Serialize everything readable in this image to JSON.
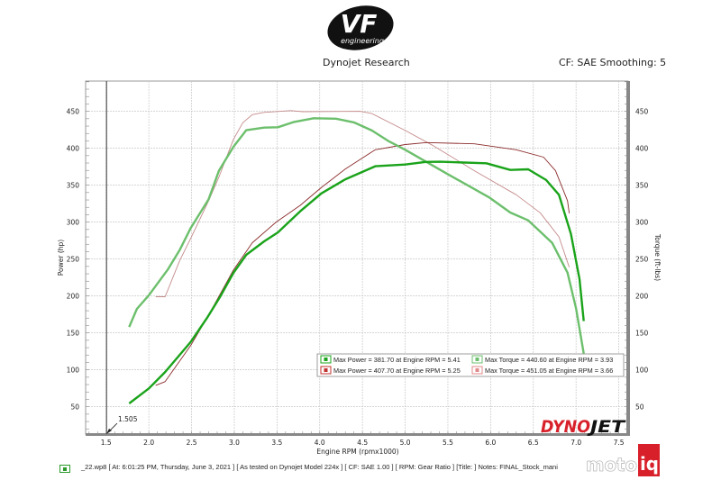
{
  "header": {
    "logo_text": "VF engineering",
    "left_title": "Dynojet Research",
    "right_title": "CF: SAE Smoothing: 5"
  },
  "footer": {
    "note": "_22.wp8 [ At: 6:01:25 PM, Thursday, June 3, 2021 ] [ As tested on Dynojet Model 224x ] [ CF: SAE 1.00 ] [ RPM: Gear Ratio ] [Title: ]  Notes: FINAL_Stock_mani",
    "dynojet_logo": "DYNOJET",
    "watermark": "motoiq"
  },
  "chart_data": {
    "type": "line",
    "xlabel": "Engine RPM (rpmx1000)",
    "ylabel": "Power (hp)",
    "y2label": "Torque (ft-lbs)",
    "xlim": [
      1.26,
      7.61
    ],
    "ylim": [
      13,
      491
    ],
    "xticks": [
      "1.5",
      "2.0",
      "2.5",
      "3.0",
      "3.5",
      "4.0",
      "4.5",
      "5.0",
      "5.5",
      "6.0",
      "6.5",
      "7.0",
      "7.5"
    ],
    "yticks": [
      "50",
      "100",
      "150",
      "200",
      "250",
      "300",
      "350",
      "400",
      "450"
    ],
    "grid": true,
    "cursor": {
      "x": 1.505,
      "label": "1.505"
    },
    "legend": {
      "placement": "bottom-right",
      "entries": [
        {
          "text": "Max Power = 381.70 at Engine RPM = 5.41",
          "color": "#1aa31a"
        },
        {
          "text": "Max Torque = 440.60 at Engine RPM = 3.93",
          "color": "#6cbf6c"
        },
        {
          "text": "Max Power = 407.70 at Engine RPM = 5.25",
          "color": "#c0302e"
        },
        {
          "text": "Max Torque = 451.05 at Engine RPM = 3.66",
          "color": "#e08a8a"
        }
      ]
    },
    "series": [
      {
        "id": "power-green",
        "color": "#1aa31a",
        "width": 2.4,
        "x": [
          1.77,
          2.0,
          2.19,
          2.49,
          2.68,
          2.84,
          2.99,
          3.14,
          3.35,
          3.51,
          3.77,
          4.02,
          4.3,
          4.65,
          5.0,
          5.24,
          5.41,
          5.6,
          5.95,
          6.23,
          6.44,
          6.65,
          6.8,
          6.94,
          7.04,
          7.09
        ],
        "y": [
          54.5,
          74.8,
          97,
          137.8,
          170,
          200,
          231.3,
          255.7,
          274,
          286,
          314.6,
          339,
          358,
          375.6,
          378,
          381.5,
          381.7,
          381,
          379.7,
          370.7,
          371.5,
          357,
          337,
          284,
          223,
          166
        ]
      },
      {
        "id": "torque-green",
        "color": "#6cbf6c",
        "width": 2.4,
        "x": [
          1.77,
          1.86,
          2.0,
          2.22,
          2.36,
          2.49,
          2.7,
          2.82,
          2.99,
          3.14,
          3.35,
          3.51,
          3.7,
          3.93,
          4.19,
          4.4,
          4.61,
          4.8,
          5.0,
          5.49,
          5.99,
          6.23,
          6.44,
          6.72,
          6.9,
          7.0,
          7.09
        ],
        "y": [
          158,
          182.5,
          201,
          235.4,
          262,
          292,
          331,
          369.5,
          402,
          424.4,
          428,
          428.5,
          435.7,
          440.6,
          440,
          435,
          424,
          410,
          398,
          365.5,
          333,
          313,
          302.4,
          272,
          231.5,
          183,
          122
        ]
      },
      {
        "id": "power-red",
        "color": "#8b2b2b",
        "width": 0.9,
        "x": [
          2.08,
          2.19,
          2.49,
          2.68,
          2.99,
          3.21,
          3.49,
          3.77,
          4.02,
          4.3,
          4.65,
          5.0,
          5.25,
          5.81,
          6.3,
          6.62,
          6.76,
          6.9,
          6.92
        ],
        "y": [
          79,
          84,
          133,
          170,
          235,
          272,
          300,
          322.6,
          347,
          372,
          398,
          405,
          407.7,
          406,
          398,
          388,
          369.5,
          329,
          312
        ]
      },
      {
        "id": "torque-red",
        "color": "#c48a8a",
        "width": 0.9,
        "x": [
          2.08,
          2.19,
          2.36,
          2.49,
          2.7,
          2.82,
          2.99,
          3.1,
          3.21,
          3.35,
          3.66,
          3.8,
          4.47,
          4.61,
          5.0,
          5.32,
          5.81,
          6.3,
          6.58,
          6.8,
          6.92
        ],
        "y": [
          199,
          199,
          247.6,
          278,
          329,
          361,
          412,
          434.5,
          445.5,
          448.6,
          451.05,
          449.5,
          450,
          447,
          424,
          404,
          369.5,
          337,
          312.6,
          280,
          239
        ]
      }
    ]
  }
}
